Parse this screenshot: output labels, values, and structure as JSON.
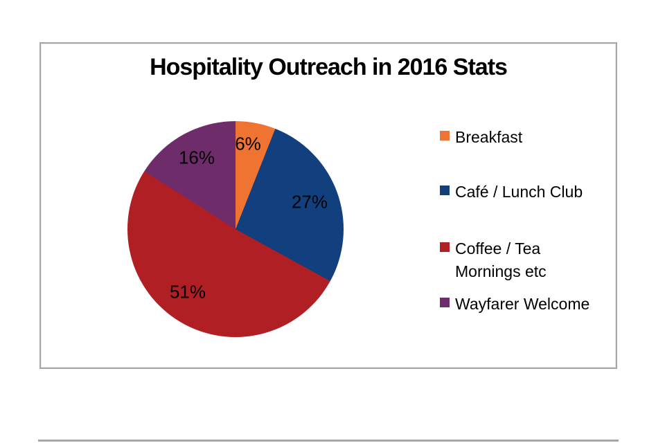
{
  "page": {
    "background": "#ffffff",
    "frame_border_color": "#a6a6a6",
    "bottom_rule_color": "#a6a6a6"
  },
  "chart_data": {
    "type": "pie",
    "title": "Hospitality Outreach in 2016 Stats",
    "start_angle_deg": 0,
    "direction": "clockwise",
    "legend_position": "right",
    "data_labels": "percent",
    "slices": [
      {
        "label": "Breakfast",
        "value": 6,
        "pct_label": "6%",
        "color": "#EF7432"
      },
      {
        "label": "Café / Lunch Club",
        "value": 27,
        "pct_label": "27%",
        "color": "#12407E"
      },
      {
        "label": "Coffee / Tea Mornings etc",
        "value": 51,
        "pct_label": "51%",
        "color": "#B01F24"
      },
      {
        "label": "Wayfarer Welcome",
        "value": 16,
        "pct_label": "16%",
        "color": "#6E2C6B"
      }
    ]
  },
  "legend": {
    "items": [
      {
        "label": "Breakfast"
      },
      {
        "label": "Café / Lunch Club"
      },
      {
        "label": "Coffee / Tea\nMornings etc"
      },
      {
        "label": "Wayfarer Welcome"
      }
    ]
  }
}
